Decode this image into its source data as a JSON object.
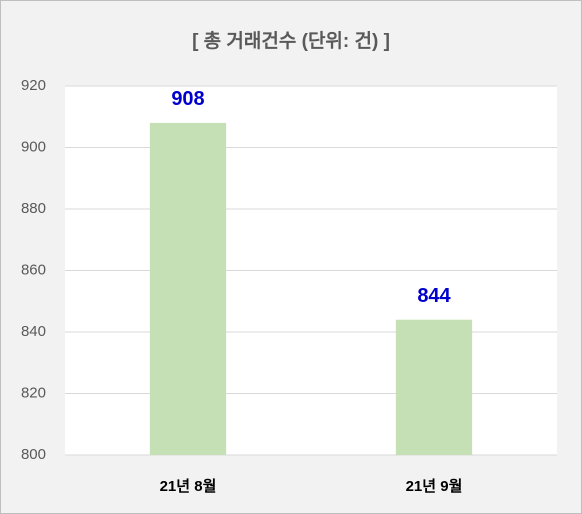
{
  "chart_data": {
    "type": "bar",
    "title": "[ 총 거래건수 (단위: 건) ]",
    "categories": [
      "21년 8월",
      "21년 9월"
    ],
    "values": [
      908,
      844
    ],
    "color": "#c5e0b4",
    "value_label_color": "#0000cc",
    "ylim": [
      800,
      920
    ],
    "yticks": [
      800,
      820,
      840,
      860,
      880,
      900,
      920
    ],
    "grid": true
  }
}
